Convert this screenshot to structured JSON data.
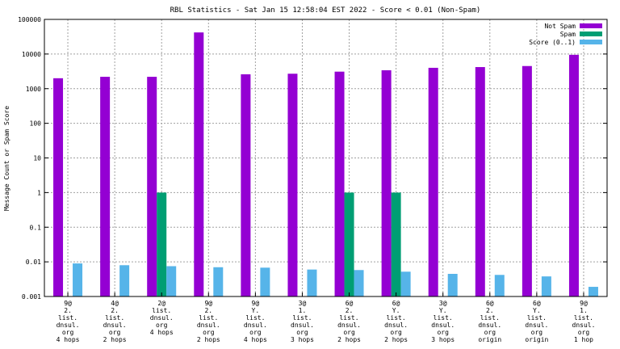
{
  "chart_data": {
    "type": "bar",
    "title": "RBL Statistics - Sat Jan 15 12:58:04 EST 2022 - Score < 0.01 (Non-Spam)",
    "ylabel": "Message Count or Spam Score",
    "xlabel": "",
    "yscale": "log",
    "ylim": [
      0.001,
      100000
    ],
    "ytick_labels": [
      "0.001",
      "0.01",
      "0.1",
      "1",
      "10",
      "100",
      "1000",
      "10000",
      "100000"
    ],
    "grid": true,
    "legend_position": "top-right",
    "categories": [
      [
        "9@",
        "2.",
        "list.",
        "dnsul.",
        "org",
        "4 hops"
      ],
      [
        "4@",
        "2.",
        "list.",
        "dnsul.",
        "org",
        "2 hops"
      ],
      [
        "2@",
        "list.",
        "dnsul.",
        "org",
        "4 hops"
      ],
      [
        "9@",
        "2.",
        "list.",
        "dnsul.",
        "org",
        "2 hops"
      ],
      [
        "9@",
        "Y.",
        "list.",
        "dnsul.",
        "org",
        "4 hops"
      ],
      [
        "3@",
        "1.",
        "list.",
        "dnsul.",
        "org",
        "3 hops"
      ],
      [
        "6@",
        "2.",
        "list.",
        "dnsul.",
        "org",
        "2 hops"
      ],
      [
        "6@",
        "Y.",
        "list.",
        "dnsul.",
        "org",
        "2 hops"
      ],
      [
        "3@",
        "Y.",
        "list.",
        "dnsul.",
        "org",
        "3 hops"
      ],
      [
        "6@",
        "2.",
        "list.",
        "dnsul.",
        "org",
        "origin"
      ],
      [
        "6@",
        "Y.",
        "list.",
        "dnsul.",
        "org",
        "origin"
      ],
      [
        "9@",
        "1.",
        "list.",
        "dnsul.",
        "org",
        "1 hop"
      ]
    ],
    "series": [
      {
        "name": "Not Spam",
        "color": "#9400d3",
        "values": [
          2000,
          2200,
          2200,
          42000,
          2600,
          2700,
          3100,
          3400,
          4000,
          4200,
          4500,
          9500
        ]
      },
      {
        "name": "Spam",
        "color": "#009e73",
        "values": [
          null,
          null,
          1,
          null,
          null,
          null,
          1,
          1,
          null,
          null,
          null,
          null
        ],
        "values_note_hidden": false
      },
      {
        "name": "Score (0..1)",
        "color": "#56b4e9",
        "values": [
          0.009,
          0.008,
          0.0075,
          0.007,
          0.0068,
          0.006,
          0.0058,
          0.0052,
          0.0045,
          0.0042,
          0.0038,
          0.0019
        ]
      }
    ]
  }
}
